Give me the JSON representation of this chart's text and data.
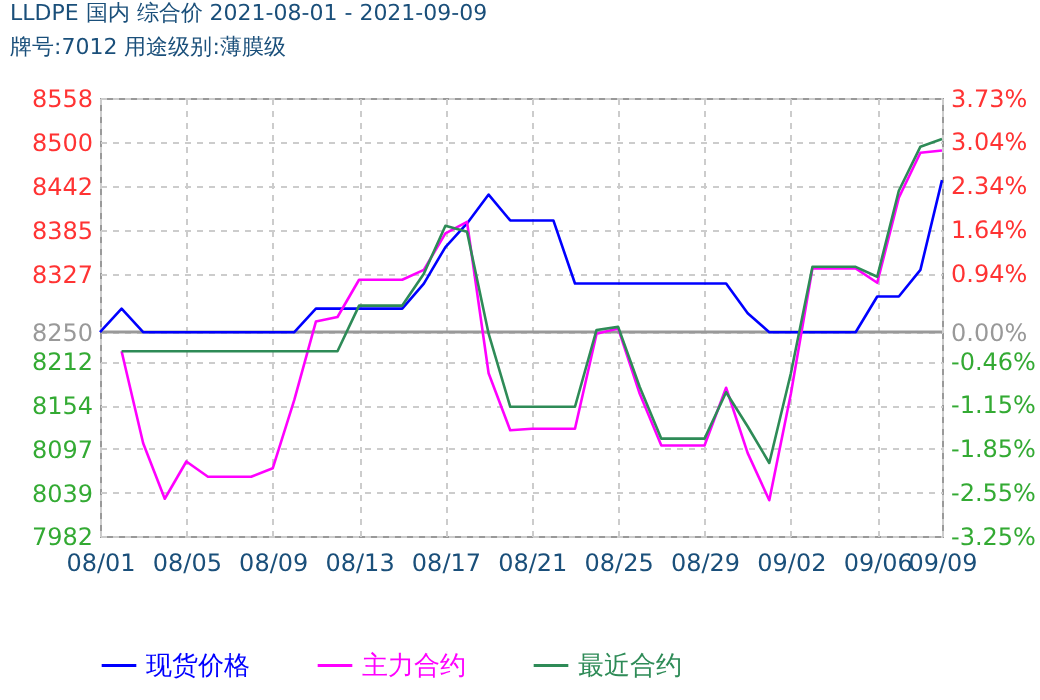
{
  "chart_data": {
    "type": "line",
    "title": "LLDPE  国内  综合价  2021-08-01 - 2021-09-09",
    "subtitle": "牌号:7012 用途级别:薄膜级",
    "x": [
      "2021-08-01",
      "2021-08-02",
      "2021-08-03",
      "2021-08-04",
      "2021-08-05",
      "2021-08-06",
      "2021-08-07",
      "2021-08-08",
      "2021-08-09",
      "2021-08-10",
      "2021-08-11",
      "2021-08-12",
      "2021-08-13",
      "2021-08-14",
      "2021-08-15",
      "2021-08-16",
      "2021-08-17",
      "2021-08-18",
      "2021-08-19",
      "2021-08-20",
      "2021-08-21",
      "2021-08-22",
      "2021-08-23",
      "2021-08-24",
      "2021-08-25",
      "2021-08-26",
      "2021-08-27",
      "2021-08-28",
      "2021-08-29",
      "2021-08-30",
      "2021-08-31",
      "2021-09-01",
      "2021-09-02",
      "2021-09-03",
      "2021-09-04",
      "2021-09-05",
      "2021-09-06",
      "2021-09-07",
      "2021-09-08",
      "2021-09-09"
    ],
    "series": [
      {
        "name": "现货价格",
        "color": "#0000ff",
        "values": [
          8250,
          8281,
          8250,
          8250,
          8250,
          8250,
          8250,
          8250,
          8250,
          8250,
          8281,
          8281,
          8281,
          8281,
          8281,
          8314,
          8362,
          8393,
          8431,
          8397,
          8397,
          8397,
          8314,
          8314,
          8314,
          8314,
          8314,
          8314,
          8314,
          8314,
          8275,
          8250,
          8250,
          8250,
          8250,
          8250,
          8297,
          8297,
          8332,
          8450
        ]
      },
      {
        "name": "主力合约",
        "color": "#ff00ff",
        "values": [
          null,
          8225,
          8104,
          8031,
          8080,
          8060,
          8060,
          8060,
          8071,
          8161,
          8264,
          8270,
          8319,
          8319,
          8319,
          8332,
          8380,
          8395,
          8196,
          8121,
          8123,
          8123,
          8123,
          8248,
          8255,
          8169,
          8101,
          8101,
          8101,
          8177,
          8091,
          8029,
          8169,
          8334,
          8334,
          8334,
          8315,
          8427,
          8486,
          8489
        ]
      },
      {
        "name": "最近合约",
        "color": "#2e8b57",
        "values": [
          null,
          8225,
          8225,
          8225,
          8225,
          8225,
          8225,
          8225,
          8225,
          8225,
          8225,
          8225,
          8285,
          8285,
          8285,
          8327,
          8390,
          8382,
          8248,
          8152,
          8152,
          8152,
          8152,
          8253,
          8257,
          8178,
          8110,
          8110,
          8110,
          8171,
          8126,
          8078,
          8196,
          8336,
          8336,
          8336,
          8323,
          8436,
          8494,
          8504
        ]
      }
    ],
    "xticks": [
      {
        "value": "2021-08-01",
        "label": "08/01"
      },
      {
        "value": "2021-08-05",
        "label": "08/05"
      },
      {
        "value": "2021-08-09",
        "label": "08/09"
      },
      {
        "value": "2021-08-13",
        "label": "08/13"
      },
      {
        "value": "2021-08-17",
        "label": "08/17"
      },
      {
        "value": "2021-08-21",
        "label": "08/21"
      },
      {
        "value": "2021-08-25",
        "label": "08/25"
      },
      {
        "value": "2021-08-29",
        "label": "08/29"
      },
      {
        "value": "2021-09-02",
        "label": "09/02"
      },
      {
        "value": "2021-09-06",
        "label": "09/06"
      },
      {
        "value": "2021-09-09",
        "label": "09/09"
      }
    ],
    "xlim": [
      "2021-08-01",
      "2021-09-09"
    ],
    "ylim": [
      7982,
      8558
    ],
    "yticks": [
      8558,
      8500,
      8442,
      8385,
      8327,
      8250,
      8212,
      8154,
      8097,
      8039,
      7982
    ],
    "y2lim": [
      -3.25,
      3.73
    ],
    "y2ticks": [
      {
        "value": 3.73,
        "label": "3.73%"
      },
      {
        "value": 3.04,
        "label": "3.04%"
      },
      {
        "value": 2.34,
        "label": "2.34%"
      },
      {
        "value": 1.64,
        "label": "1.64%"
      },
      {
        "value": 0.94,
        "label": "0.94%"
      },
      {
        "value": 0,
        "label": "0.00%"
      },
      {
        "value": -0.46,
        "label": "-0.46%"
      },
      {
        "value": -1.15,
        "label": "-1.15%"
      },
      {
        "value": -1.85,
        "label": "-1.85%"
      },
      {
        "value": -2.55,
        "label": "-2.55%"
      },
      {
        "value": -3.25,
        "label": "-3.25%"
      }
    ],
    "ref_lines": [
      {
        "axis": "y2",
        "value": 0,
        "color": "#999999"
      }
    ],
    "grid": true,
    "legend": "bottom",
    "marker": "none",
    "line_style": "solid"
  }
}
